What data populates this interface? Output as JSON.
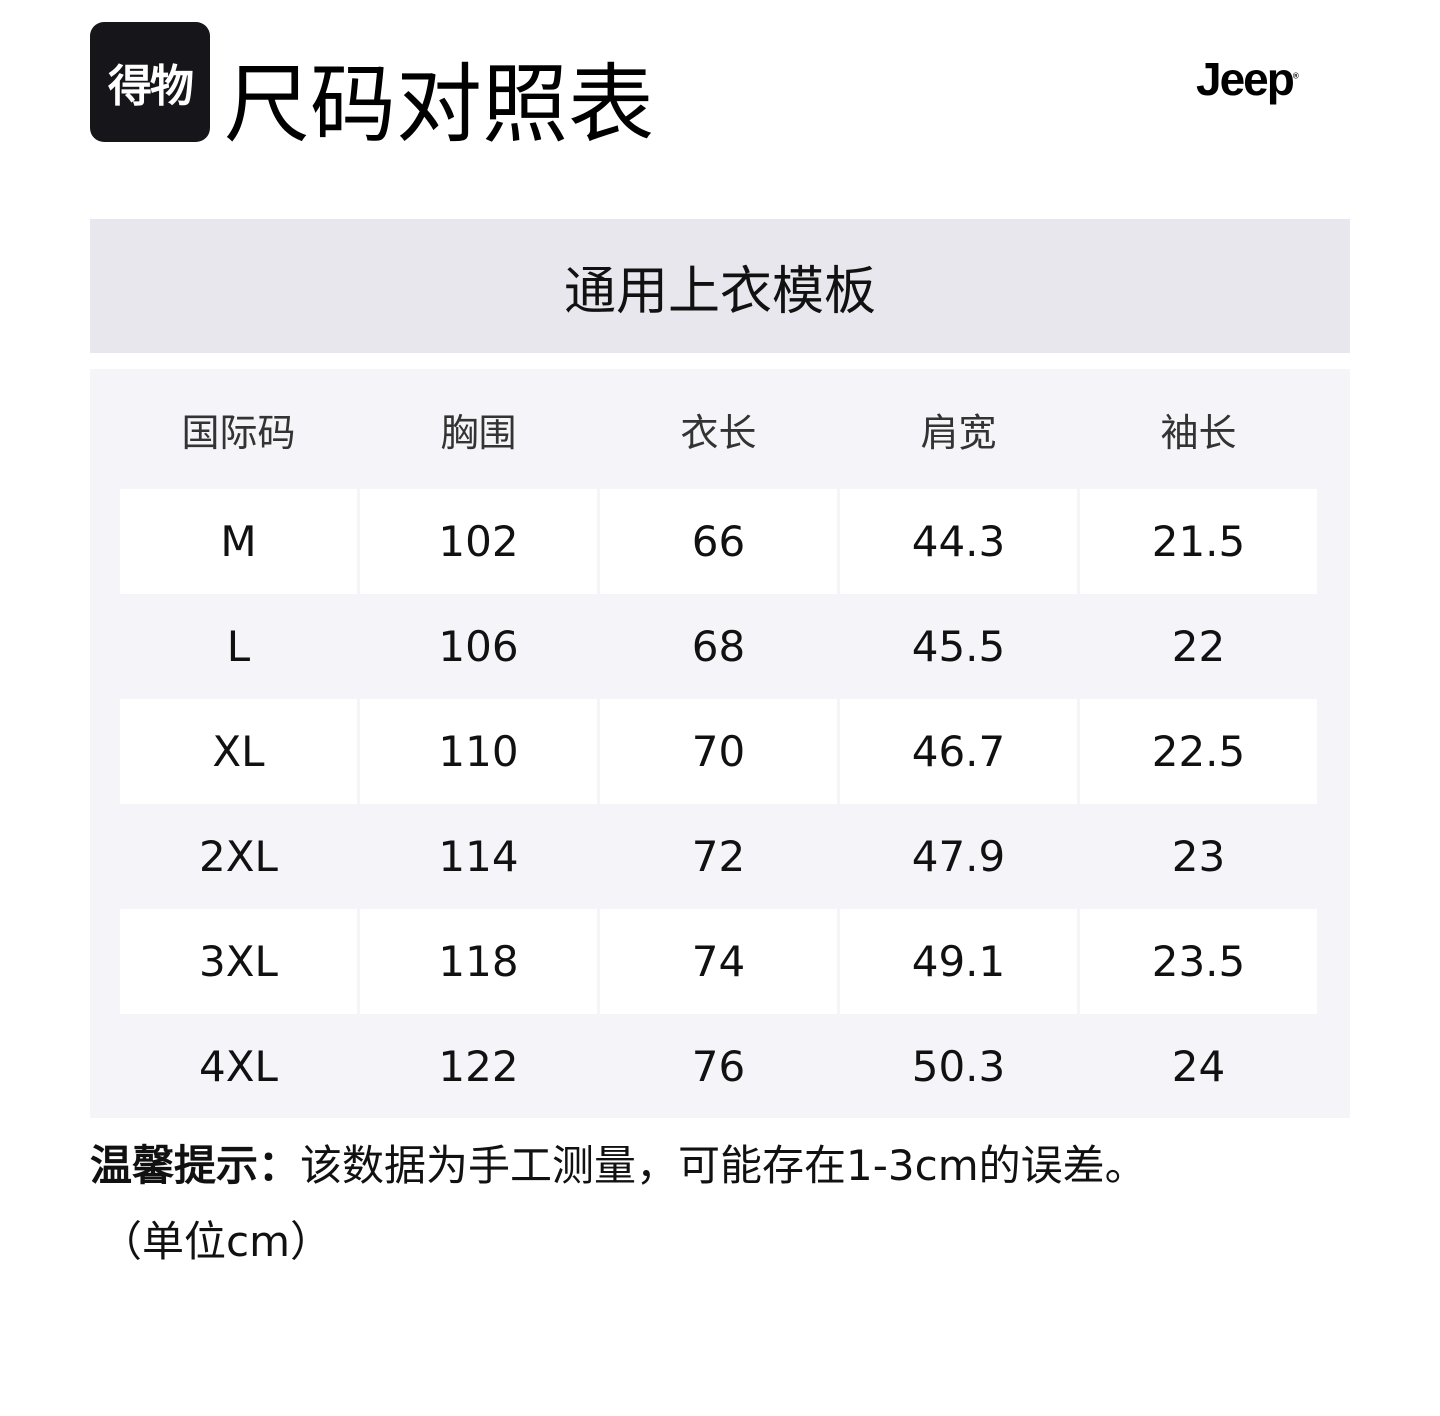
{
  "header": {
    "logo_text": "得物",
    "title": "尺码对照表",
    "brand": "Jeep"
  },
  "table": {
    "template_title": "通用上衣模板",
    "columns": [
      "国际码",
      "胸围",
      "衣长",
      "肩宽",
      "袖长"
    ],
    "rows": [
      [
        "M",
        "102",
        "66",
        "44.3",
        "21.5"
      ],
      [
        "L",
        "106",
        "68",
        "45.5",
        "22"
      ],
      [
        "XL",
        "110",
        "70",
        "46.7",
        "22.5"
      ],
      [
        "2XL",
        "114",
        "72",
        "47.9",
        "23"
      ],
      [
        "3XL",
        "118",
        "74",
        "49.1",
        "23.5"
      ],
      [
        "4XL",
        "122",
        "76",
        "50.3",
        "24"
      ]
    ]
  },
  "footer": {
    "tip_label": "温馨提示：",
    "tip_text": "该数据为手工测量，可能存在1-3cm的误差。",
    "unit": "（单位cm）"
  }
}
